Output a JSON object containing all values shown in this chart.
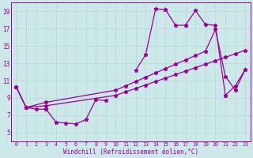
{
  "xlabel": "Windchill (Refroidissement éolien,°C)",
  "background_color": "#cce8e8",
  "line_color": "#990099",
  "xlim": [
    -0.5,
    23.5
  ],
  "ylim": [
    4.0,
    20.0
  ],
  "xticks": [
    0,
    1,
    2,
    3,
    4,
    5,
    6,
    7,
    8,
    9,
    10,
    11,
    12,
    13,
    14,
    15,
    16,
    17,
    18,
    19,
    20,
    21,
    22,
    23
  ],
  "yticks": [
    5,
    7,
    9,
    11,
    13,
    15,
    17,
    19
  ],
  "jagged_segments": [
    {
      "x": [
        0,
        1,
        2,
        3
      ],
      "y": [
        10.3,
        7.9,
        7.7,
        7.7
      ]
    },
    {
      "x": [
        3,
        4,
        5,
        6,
        7,
        8,
        9
      ],
      "y": [
        7.7,
        6.2,
        6.1,
        6.0,
        6.5,
        8.8,
        8.7
      ]
    },
    {
      "x": [
        12,
        13,
        14,
        15
      ],
      "y": [
        12.2,
        14.0,
        19.3,
        19.2
      ]
    },
    {
      "x": [
        15,
        16,
        17
      ],
      "y": [
        19.2,
        17.4,
        17.4
      ]
    },
    {
      "x": [
        17,
        18,
        19,
        20,
        21
      ],
      "y": [
        17.4,
        19.1,
        17.5,
        17.4,
        9.3
      ]
    },
    {
      "x": [
        21,
        22,
        23
      ],
      "y": [
        9.3,
        10.4,
        12.3
      ]
    }
  ],
  "line_upper_x": [
    0,
    1,
    3,
    10,
    11,
    12,
    13,
    14,
    15,
    16,
    17,
    18,
    19,
    20,
    21,
    22,
    23
  ],
  "line_upper_y": [
    10.3,
    7.9,
    8.5,
    9.9,
    10.4,
    10.9,
    11.4,
    11.9,
    12.4,
    12.9,
    13.4,
    13.9,
    14.4,
    16.9,
    11.5,
    9.9,
    12.3
  ],
  "line_lower_x": [
    0,
    1,
    3,
    10,
    11,
    12,
    13,
    14,
    15,
    16,
    17,
    18,
    19,
    20,
    21,
    22,
    23
  ],
  "line_lower_y": [
    10.3,
    7.9,
    8.1,
    9.3,
    9.7,
    10.1,
    10.5,
    10.9,
    11.3,
    11.7,
    12.1,
    12.5,
    12.9,
    13.3,
    13.7,
    14.1,
    14.5
  ]
}
